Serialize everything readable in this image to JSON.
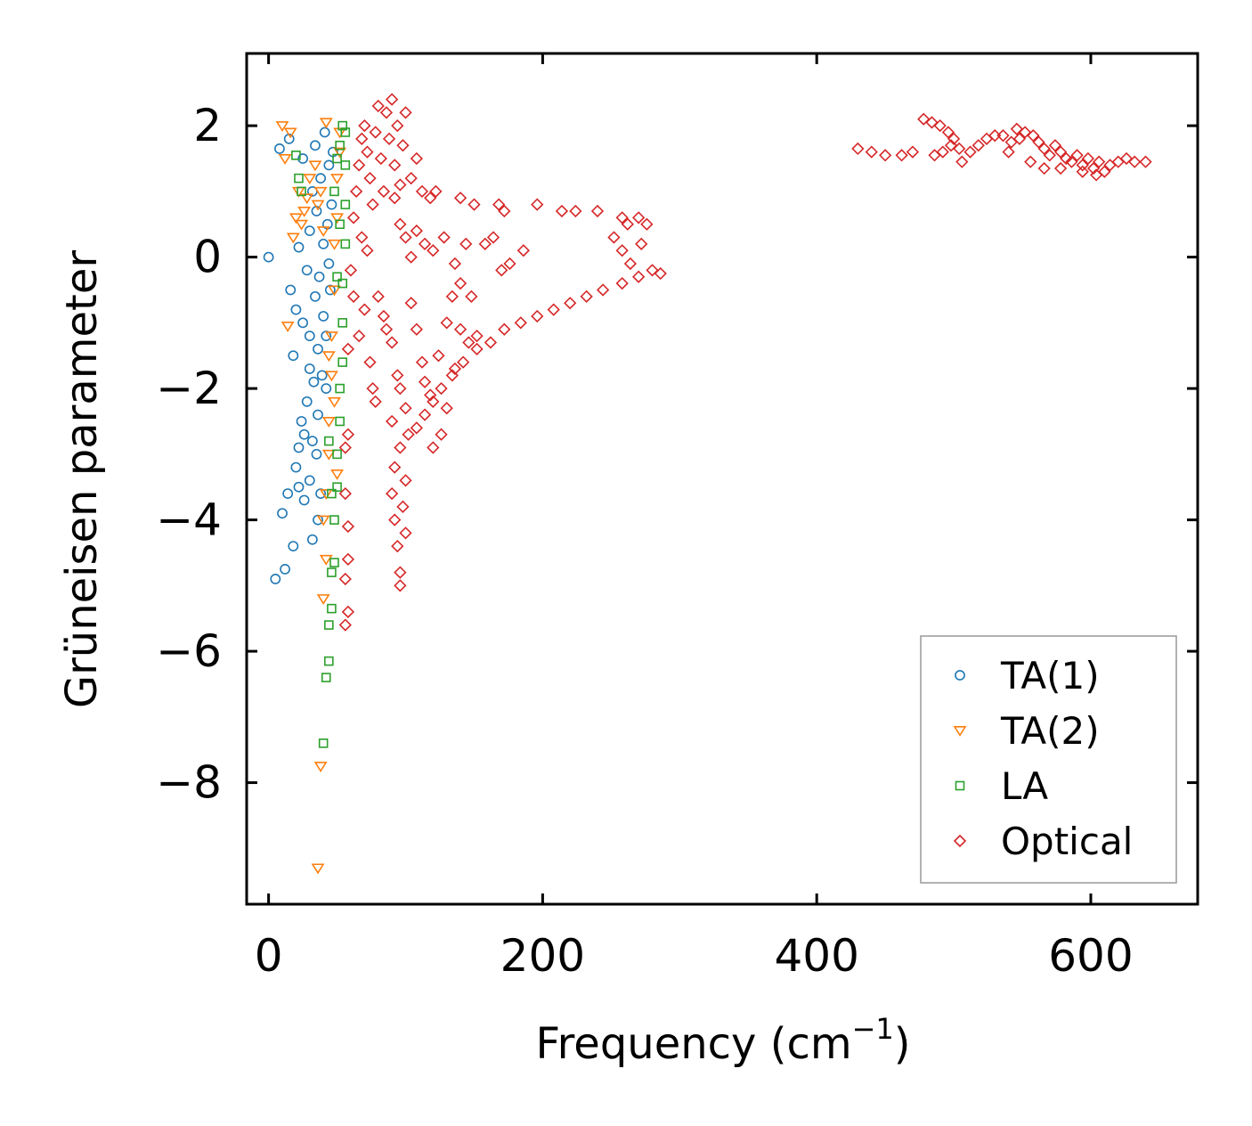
{
  "chart_data": {
    "type": "scatter",
    "xlabel": "Frequency (cm",
    "xlabel_sup": "−1",
    "xlabel_close": ")",
    "ylabel": "Grüneisen parameter",
    "xlim": [
      -16,
      678
    ],
    "ylim": [
      -9.85,
      3.1
    ],
    "xticks": [
      0,
      200,
      400,
      600
    ],
    "xtick_labels": [
      "0",
      "200",
      "400",
      "600"
    ],
    "yticks": [
      2,
      0,
      -2,
      -4,
      -6,
      -8
    ],
    "ytick_labels": [
      "2",
      "0",
      "−2",
      "−4",
      "−6",
      "−8"
    ],
    "grid": false,
    "legend_position": "lower-right",
    "series": [
      {
        "name": "TA(1)",
        "marker": "circle",
        "color": "#1f77b4",
        "points": [
          [
            0,
            0
          ],
          [
            5,
            -4.9
          ],
          [
            8,
            1.65
          ],
          [
            10,
            -3.9
          ],
          [
            12,
            -4.75
          ],
          [
            14,
            -3.6
          ],
          [
            15,
            1.8
          ],
          [
            16,
            -0.5
          ],
          [
            18,
            -4.4
          ],
          [
            18,
            -1.5
          ],
          [
            20,
            -3.2
          ],
          [
            20,
            -0.8
          ],
          [
            22,
            -2.9
          ],
          [
            22,
            0.15
          ],
          [
            24,
            -2.5
          ],
          [
            25,
            -1.0
          ],
          [
            25,
            1.5
          ],
          [
            26,
            -3.7
          ],
          [
            28,
            -2.2
          ],
          [
            28,
            -0.2
          ],
          [
            30,
            -3.4
          ],
          [
            30,
            -1.2
          ],
          [
            30,
            0.4
          ],
          [
            32,
            -2.8
          ],
          [
            32,
            -4.3
          ],
          [
            32,
            1.0
          ],
          [
            33,
            -1.9
          ],
          [
            34,
            -0.6
          ],
          [
            34,
            1.7
          ],
          [
            35,
            -3.0
          ],
          [
            35,
            0.7
          ],
          [
            36,
            -2.4
          ],
          [
            36,
            -1.4
          ],
          [
            37,
            -0.3
          ],
          [
            38,
            1.2
          ],
          [
            38,
            -3.6
          ],
          [
            39,
            -1.8
          ],
          [
            40,
            0.2
          ],
          [
            40,
            -0.9
          ],
          [
            41,
            1.9
          ],
          [
            42,
            -2.0
          ],
          [
            42,
            -1.2
          ],
          [
            43,
            0.5
          ],
          [
            44,
            -0.1
          ],
          [
            44,
            1.4
          ],
          [
            45,
            -0.5
          ],
          [
            46,
            0.8
          ],
          [
            47,
            1.6
          ],
          [
            36,
            -4.0
          ],
          [
            30,
            -1.7
          ],
          [
            26,
            -2.7
          ],
          [
            22,
            -3.5
          ]
        ]
      },
      {
        "name": "TA(2)",
        "marker": "triangle-down",
        "color": "#ff7f0e",
        "points": [
          [
            36,
            -9.3
          ],
          [
            38,
            -7.75
          ],
          [
            40,
            -5.2
          ],
          [
            42,
            -4.6
          ],
          [
            40,
            -4.0
          ],
          [
            42,
            -3.6
          ],
          [
            44,
            -3.0
          ],
          [
            44,
            -2.5
          ],
          [
            46,
            -1.8
          ],
          [
            46,
            -1.2
          ],
          [
            48,
            -0.5
          ],
          [
            48,
            0.2
          ],
          [
            50,
            0.6
          ],
          [
            50,
            1.2
          ],
          [
            52,
            1.6
          ],
          [
            52,
            1.9
          ],
          [
            40,
            0.4
          ],
          [
            38,
            1.0
          ],
          [
            36,
            0.8
          ],
          [
            34,
            1.4
          ],
          [
            30,
            1.2
          ],
          [
            28,
            0.9
          ],
          [
            26,
            0.7
          ],
          [
            24,
            0.5
          ],
          [
            20,
            0.6
          ],
          [
            16,
            1.9
          ],
          [
            14,
            -1.05
          ],
          [
            12,
            1.5
          ],
          [
            10,
            2.0
          ],
          [
            18,
            0.3
          ],
          [
            22,
            1.0
          ],
          [
            42,
            2.05
          ],
          [
            44,
            -1.5
          ],
          [
            48,
            -2.2
          ],
          [
            50,
            -3.3
          ]
        ]
      },
      {
        "name": "LA",
        "marker": "square",
        "color": "#2ca02c",
        "points": [
          [
            40,
            -7.4
          ],
          [
            42,
            -6.4
          ],
          [
            44,
            -6.15
          ],
          [
            44,
            -5.6
          ],
          [
            46,
            -5.35
          ],
          [
            46,
            -4.8
          ],
          [
            48,
            -4.65
          ],
          [
            48,
            -4.0
          ],
          [
            50,
            -3.5
          ],
          [
            50,
            -3.0
          ],
          [
            52,
            -2.5
          ],
          [
            52,
            -2.0
          ],
          [
            54,
            -1.6
          ],
          [
            54,
            -1.0
          ],
          [
            54,
            -0.4
          ],
          [
            56,
            0.2
          ],
          [
            56,
            0.8
          ],
          [
            56,
            1.4
          ],
          [
            56,
            1.9
          ],
          [
            54,
            2.0
          ],
          [
            52,
            1.7
          ],
          [
            50,
            1.5
          ],
          [
            48,
            1.0
          ],
          [
            52,
            0.5
          ],
          [
            50,
            -0.3
          ],
          [
            20,
            1.55
          ],
          [
            22,
            1.2
          ],
          [
            24,
            1.0
          ],
          [
            44,
            -2.8
          ],
          [
            46,
            -3.6
          ]
        ]
      },
      {
        "name": "Optical",
        "marker": "diamond",
        "color": "#d62728",
        "points": [
          [
            58,
            -5.4
          ],
          [
            56,
            -5.6
          ],
          [
            58,
            -4.6
          ],
          [
            56,
            -4.9
          ],
          [
            58,
            -4.1
          ],
          [
            56,
            -3.6
          ],
          [
            58,
            -2.7
          ],
          [
            56,
            -2.9
          ],
          [
            58,
            -1.4
          ],
          [
            60,
            -0.2
          ],
          [
            62,
            0.6
          ],
          [
            64,
            1.0
          ],
          [
            66,
            1.4
          ],
          [
            68,
            1.8
          ],
          [
            70,
            2.0
          ],
          [
            72,
            1.6
          ],
          [
            74,
            1.2
          ],
          [
            76,
            0.8
          ],
          [
            78,
            1.9
          ],
          [
            80,
            2.3
          ],
          [
            82,
            1.5
          ],
          [
            84,
            1.0
          ],
          [
            86,
            2.2
          ],
          [
            88,
            1.8
          ],
          [
            90,
            2.4
          ],
          [
            92,
            1.4
          ],
          [
            94,
            2.0
          ],
          [
            96,
            1.1
          ],
          [
            98,
            1.7
          ],
          [
            100,
            2.2
          ],
          [
            104,
            1.2
          ],
          [
            108,
            1.5
          ],
          [
            112,
            1.0
          ],
          [
            118,
            0.9
          ],
          [
            122,
            1.0
          ],
          [
            140,
            0.9
          ],
          [
            150,
            0.8
          ],
          [
            168,
            0.8
          ],
          [
            172,
            0.7
          ],
          [
            196,
            0.8
          ],
          [
            214,
            0.7
          ],
          [
            224,
            0.7
          ],
          [
            240,
            0.7
          ],
          [
            258,
            0.6
          ],
          [
            262,
            0.5
          ],
          [
            270,
            0.6
          ],
          [
            276,
            0.5
          ],
          [
            252,
            0.3
          ],
          [
            258,
            0.1
          ],
          [
            264,
            -0.1
          ],
          [
            272,
            0.2
          ],
          [
            280,
            -0.2
          ],
          [
            286,
            -0.25
          ],
          [
            270,
            -0.3
          ],
          [
            258,
            -0.4
          ],
          [
            244,
            -0.5
          ],
          [
            232,
            -0.6
          ],
          [
            220,
            -0.7
          ],
          [
            208,
            -0.8
          ],
          [
            196,
            -0.9
          ],
          [
            184,
            -1.0
          ],
          [
            172,
            -1.1
          ],
          [
            162,
            -1.3
          ],
          [
            152,
            -1.4
          ],
          [
            142,
            -1.6
          ],
          [
            134,
            -1.8
          ],
          [
            126,
            -2.0
          ],
          [
            120,
            -2.2
          ],
          [
            114,
            -2.4
          ],
          [
            108,
            -2.6
          ],
          [
            102,
            -2.7
          ],
          [
            96,
            -2.9
          ],
          [
            92,
            -3.2
          ],
          [
            90,
            -2.5
          ],
          [
            90,
            -3.6
          ],
          [
            92,
            -4.0
          ],
          [
            94,
            -4.4
          ],
          [
            96,
            -4.8
          ],
          [
            96,
            -5.0
          ],
          [
            100,
            -4.2
          ],
          [
            98,
            -3.8
          ],
          [
            100,
            -3.4
          ],
          [
            120,
            -2.9
          ],
          [
            126,
            -2.7
          ],
          [
            130,
            -2.3
          ],
          [
            136,
            -1.7
          ],
          [
            140,
            -1.1
          ],
          [
            146,
            -1.3
          ],
          [
            152,
            -1.2
          ],
          [
            80,
            -0.6
          ],
          [
            84,
            -0.9
          ],
          [
            86,
            -1.1
          ],
          [
            90,
            -1.3
          ],
          [
            94,
            -1.8
          ],
          [
            96,
            -2.0
          ],
          [
            100,
            -2.3
          ],
          [
            104,
            -0.7
          ],
          [
            108,
            -1.1
          ],
          [
            112,
            -1.6
          ],
          [
            114,
            -1.9
          ],
          [
            118,
            -2.1
          ],
          [
            124,
            -1.5
          ],
          [
            130,
            -1.0
          ],
          [
            134,
            -0.6
          ],
          [
            140,
            -0.4
          ],
          [
            148,
            -0.6
          ],
          [
            92,
            0.9
          ],
          [
            96,
            0.5
          ],
          [
            100,
            0.3
          ],
          [
            104,
            0.0
          ],
          [
            108,
            0.4
          ],
          [
            114,
            0.2
          ],
          [
            120,
            0.1
          ],
          [
            128,
            0.3
          ],
          [
            136,
            -0.1
          ],
          [
            144,
            0.2
          ],
          [
            158,
            0.2
          ],
          [
            164,
            0.3
          ],
          [
            170,
            -0.2
          ],
          [
            176,
            -0.1
          ],
          [
            186,
            0.1
          ],
          [
            66,
            -1.2
          ],
          [
            70,
            -0.8
          ],
          [
            74,
            -1.6
          ],
          [
            76,
            -2.0
          ],
          [
            78,
            -2.2
          ],
          [
            68,
            0.3
          ],
          [
            72,
            0.1
          ],
          [
            62,
            -0.6
          ],
          [
            430,
            1.65
          ],
          [
            440,
            1.6
          ],
          [
            450,
            1.55
          ],
          [
            462,
            1.55
          ],
          [
            470,
            1.6
          ],
          [
            478,
            2.1
          ],
          [
            484,
            2.05
          ],
          [
            490,
            2.0
          ],
          [
            496,
            1.9
          ],
          [
            500,
            1.8
          ],
          [
            504,
            1.65
          ],
          [
            498,
            1.7
          ],
          [
            492,
            1.6
          ],
          [
            486,
            1.55
          ],
          [
            506,
            1.45
          ],
          [
            512,
            1.6
          ],
          [
            518,
            1.7
          ],
          [
            524,
            1.8
          ],
          [
            530,
            1.85
          ],
          [
            536,
            1.85
          ],
          [
            542,
            1.75
          ],
          [
            548,
            1.8
          ],
          [
            552,
            1.9
          ],
          [
            558,
            1.85
          ],
          [
            562,
            1.75
          ],
          [
            566,
            1.65
          ],
          [
            570,
            1.55
          ],
          [
            574,
            1.7
          ],
          [
            578,
            1.6
          ],
          [
            582,
            1.5
          ],
          [
            586,
            1.45
          ],
          [
            590,
            1.55
          ],
          [
            594,
            1.4
          ],
          [
            598,
            1.5
          ],
          [
            602,
            1.35
          ],
          [
            606,
            1.45
          ],
          [
            610,
            1.3
          ],
          [
            614,
            1.4
          ],
          [
            620,
            1.45
          ],
          [
            626,
            1.5
          ],
          [
            632,
            1.45
          ],
          [
            640,
            1.45
          ],
          [
            546,
            1.95
          ],
          [
            540,
            1.6
          ],
          [
            556,
            1.45
          ],
          [
            566,
            1.35
          ],
          [
            578,
            1.35
          ],
          [
            594,
            1.3
          ],
          [
            604,
            1.25
          ]
        ]
      }
    ]
  }
}
